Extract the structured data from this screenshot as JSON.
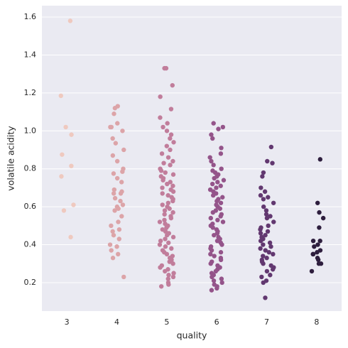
{
  "chart_data": {
    "type": "strip",
    "xlabel": "quality",
    "ylabel": "volatile acidity",
    "categories": [
      "3",
      "4",
      "5",
      "6",
      "7",
      "8"
    ],
    "colors": [
      "#efc9bf",
      "#dca4a8",
      "#c17d9b",
      "#94548a",
      "#623870",
      "#2e1e3e"
    ],
    "values": [
      [
        1.58,
        1.185,
        1.02,
        0.98,
        0.875,
        0.815,
        0.76,
        0.61,
        0.58,
        0.44
      ],
      [
        1.13,
        1.12,
        1.09,
        1.04,
        1.02,
        1.02,
        1.0,
        0.96,
        0.935,
        0.9,
        0.87,
        0.84,
        0.8,
        0.785,
        0.775,
        0.75,
        0.73,
        0.69,
        0.68,
        0.67,
        0.67,
        0.645,
        0.63,
        0.61,
        0.6,
        0.59,
        0.58,
        0.55,
        0.52,
        0.5,
        0.48,
        0.47,
        0.45,
        0.43,
        0.4,
        0.39,
        0.37,
        0.35,
        0.33,
        0.23
      ],
      [
        1.33,
        1.33,
        1.24,
        1.18,
        1.115,
        1.07,
        1.04,
        1.02,
        1.0,
        0.98,
        0.96,
        0.94,
        0.92,
        0.9,
        0.88,
        0.86,
        0.84,
        0.83,
        0.82,
        0.8,
        0.79,
        0.78,
        0.77,
        0.76,
        0.75,
        0.74,
        0.73,
        0.72,
        0.71,
        0.7,
        0.69,
        0.68,
        0.67,
        0.66,
        0.65,
        0.64,
        0.63,
        0.62,
        0.61,
        0.6,
        0.59,
        0.58,
        0.57,
        0.56,
        0.55,
        0.54,
        0.53,
        0.52,
        0.51,
        0.5,
        0.49,
        0.48,
        0.47,
        0.46,
        0.45,
        0.44,
        0.43,
        0.42,
        0.41,
        0.4,
        0.39,
        0.38,
        0.37,
        0.36,
        0.35,
        0.34,
        0.33,
        0.32,
        0.31,
        0.3,
        0.29,
        0.28,
        0.27,
        0.26,
        0.25,
        0.24,
        0.23,
        0.22,
        0.2,
        0.19,
        0.18
      ],
      [
        1.04,
        1.02,
        1.01,
        0.98,
        0.96,
        0.91,
        0.88,
        0.86,
        0.84,
        0.82,
        0.8,
        0.79,
        0.78,
        0.77,
        0.76,
        0.75,
        0.74,
        0.73,
        0.72,
        0.71,
        0.7,
        0.69,
        0.68,
        0.67,
        0.66,
        0.65,
        0.64,
        0.63,
        0.62,
        0.61,
        0.6,
        0.59,
        0.58,
        0.57,
        0.56,
        0.55,
        0.54,
        0.53,
        0.52,
        0.51,
        0.5,
        0.49,
        0.48,
        0.47,
        0.46,
        0.45,
        0.44,
        0.43,
        0.42,
        0.41,
        0.4,
        0.39,
        0.38,
        0.37,
        0.36,
        0.35,
        0.34,
        0.33,
        0.32,
        0.31,
        0.3,
        0.29,
        0.28,
        0.27,
        0.26,
        0.25,
        0.24,
        0.23,
        0.22,
        0.21,
        0.2,
        0.19,
        0.18,
        0.17,
        0.16
      ],
      [
        0.915,
        0.84,
        0.83,
        0.78,
        0.76,
        0.7,
        0.68,
        0.66,
        0.65,
        0.64,
        0.62,
        0.6,
        0.58,
        0.56,
        0.55,
        0.54,
        0.52,
        0.5,
        0.49,
        0.48,
        0.47,
        0.46,
        0.45,
        0.44,
        0.43,
        0.42,
        0.41,
        0.4,
        0.39,
        0.38,
        0.37,
        0.36,
        0.35,
        0.34,
        0.33,
        0.32,
        0.31,
        0.3,
        0.29,
        0.28,
        0.27,
        0.26,
        0.24,
        0.23,
        0.21,
        0.2,
        0.12
      ],
      [
        0.85,
        0.62,
        0.57,
        0.54,
        0.49,
        0.42,
        0.42,
        0.4,
        0.39,
        0.37,
        0.36,
        0.35,
        0.35,
        0.33,
        0.32,
        0.3,
        0.3,
        0.26
      ]
    ],
    "ylim": [
      0.05,
      1.66
    ],
    "yticks": [
      0.2,
      0.4,
      0.6,
      0.8,
      {
        "value": 1,
        "label": "1.0"
      },
      1.2,
      1.4,
      1.6
    ],
    "grid": true
  }
}
